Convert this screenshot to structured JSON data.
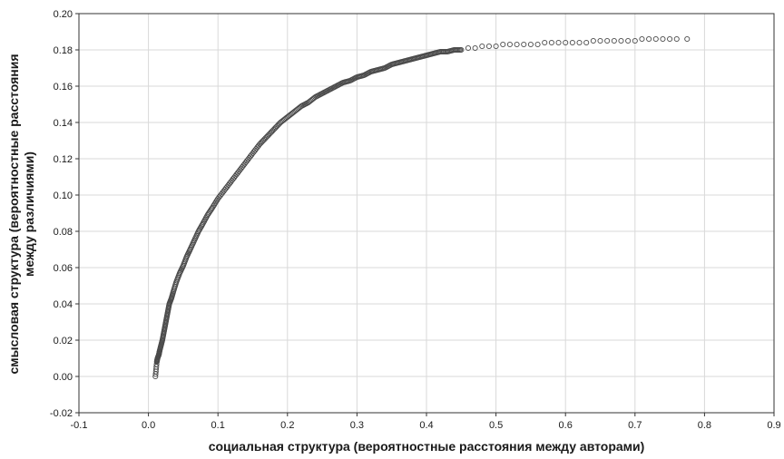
{
  "chart_data": {
    "type": "scatter",
    "title": "",
    "xlabel": "социальная структура (вероятностные расстояния между авторами)",
    "ylabel_lines": [
      "смысловая структура (вероятностные расстояния",
      "между различиями)"
    ],
    "xlim": [
      -0.1,
      0.9
    ],
    "ylim": [
      -0.02,
      0.2
    ],
    "x_ticks": [
      -0.1,
      0.0,
      0.1,
      0.2,
      0.3,
      0.4,
      0.5,
      0.6,
      0.7,
      0.8,
      0.9
    ],
    "y_ticks": [
      -0.02,
      0.0,
      0.02,
      0.04,
      0.06,
      0.08,
      0.1,
      0.12,
      0.14,
      0.16,
      0.18,
      0.2
    ],
    "x_tick_labels": [
      "-0.1",
      "0.0",
      "0.1",
      "0.2",
      "0.3",
      "0.4",
      "0.5",
      "0.6",
      "0.7",
      "0.8",
      "0.9"
    ],
    "y_tick_labels": [
      "-0.02",
      "0.00",
      "0.02",
      "0.04",
      "0.06",
      "0.08",
      "0.10",
      "0.12",
      "0.14",
      "0.16",
      "0.18",
      "0.20"
    ],
    "grid": true,
    "marker": "open-circle",
    "point_color": "#4a4a4a",
    "points": [
      [
        0.01,
        0.0
      ],
      [
        0.012,
        0.008
      ],
      [
        0.013,
        0.01
      ],
      [
        0.015,
        0.012
      ],
      [
        0.016,
        0.014
      ],
      [
        0.018,
        0.017
      ],
      [
        0.02,
        0.02
      ],
      [
        0.022,
        0.024
      ],
      [
        0.024,
        0.028
      ],
      [
        0.026,
        0.032
      ],
      [
        0.028,
        0.036
      ],
      [
        0.03,
        0.04
      ],
      [
        0.033,
        0.043
      ],
      [
        0.036,
        0.047
      ],
      [
        0.04,
        0.052
      ],
      [
        0.045,
        0.057
      ],
      [
        0.05,
        0.061
      ],
      [
        0.055,
        0.066
      ],
      [
        0.06,
        0.07
      ],
      [
        0.066,
        0.075
      ],
      [
        0.072,
        0.08
      ],
      [
        0.078,
        0.084
      ],
      [
        0.085,
        0.089
      ],
      [
        0.092,
        0.093
      ],
      [
        0.1,
        0.098
      ],
      [
        0.11,
        0.103
      ],
      [
        0.12,
        0.108
      ],
      [
        0.13,
        0.113
      ],
      [
        0.14,
        0.118
      ],
      [
        0.15,
        0.123
      ],
      [
        0.16,
        0.128
      ],
      [
        0.17,
        0.132
      ],
      [
        0.18,
        0.136
      ],
      [
        0.19,
        0.14
      ],
      [
        0.2,
        0.143
      ],
      [
        0.21,
        0.146
      ],
      [
        0.22,
        0.149
      ],
      [
        0.23,
        0.151
      ],
      [
        0.24,
        0.154
      ],
      [
        0.25,
        0.156
      ],
      [
        0.26,
        0.158
      ],
      [
        0.27,
        0.16
      ],
      [
        0.28,
        0.162
      ],
      [
        0.29,
        0.163
      ],
      [
        0.3,
        0.165
      ],
      [
        0.31,
        0.166
      ],
      [
        0.32,
        0.168
      ],
      [
        0.33,
        0.169
      ],
      [
        0.34,
        0.17
      ],
      [
        0.35,
        0.172
      ],
      [
        0.36,
        0.173
      ],
      [
        0.37,
        0.174
      ],
      [
        0.38,
        0.175
      ],
      [
        0.39,
        0.176
      ],
      [
        0.4,
        0.177
      ],
      [
        0.41,
        0.178
      ],
      [
        0.42,
        0.179
      ],
      [
        0.43,
        0.179
      ],
      [
        0.44,
        0.18
      ],
      [
        0.45,
        0.18
      ],
      [
        0.46,
        0.181
      ],
      [
        0.47,
        0.181
      ],
      [
        0.48,
        0.182
      ],
      [
        0.49,
        0.182
      ],
      [
        0.5,
        0.182
      ],
      [
        0.51,
        0.183
      ],
      [
        0.52,
        0.183
      ],
      [
        0.53,
        0.183
      ],
      [
        0.54,
        0.183
      ],
      [
        0.55,
        0.183
      ],
      [
        0.56,
        0.183
      ],
      [
        0.57,
        0.184
      ],
      [
        0.58,
        0.184
      ],
      [
        0.59,
        0.184
      ],
      [
        0.6,
        0.184
      ],
      [
        0.61,
        0.184
      ],
      [
        0.62,
        0.184
      ],
      [
        0.63,
        0.184
      ],
      [
        0.64,
        0.185
      ],
      [
        0.65,
        0.185
      ],
      [
        0.66,
        0.185
      ],
      [
        0.67,
        0.185
      ],
      [
        0.68,
        0.185
      ],
      [
        0.69,
        0.185
      ],
      [
        0.7,
        0.185
      ],
      [
        0.71,
        0.186
      ],
      [
        0.72,
        0.186
      ],
      [
        0.73,
        0.186
      ],
      [
        0.74,
        0.186
      ],
      [
        0.75,
        0.186
      ],
      [
        0.76,
        0.186
      ],
      [
        0.775,
        0.186
      ]
    ]
  }
}
